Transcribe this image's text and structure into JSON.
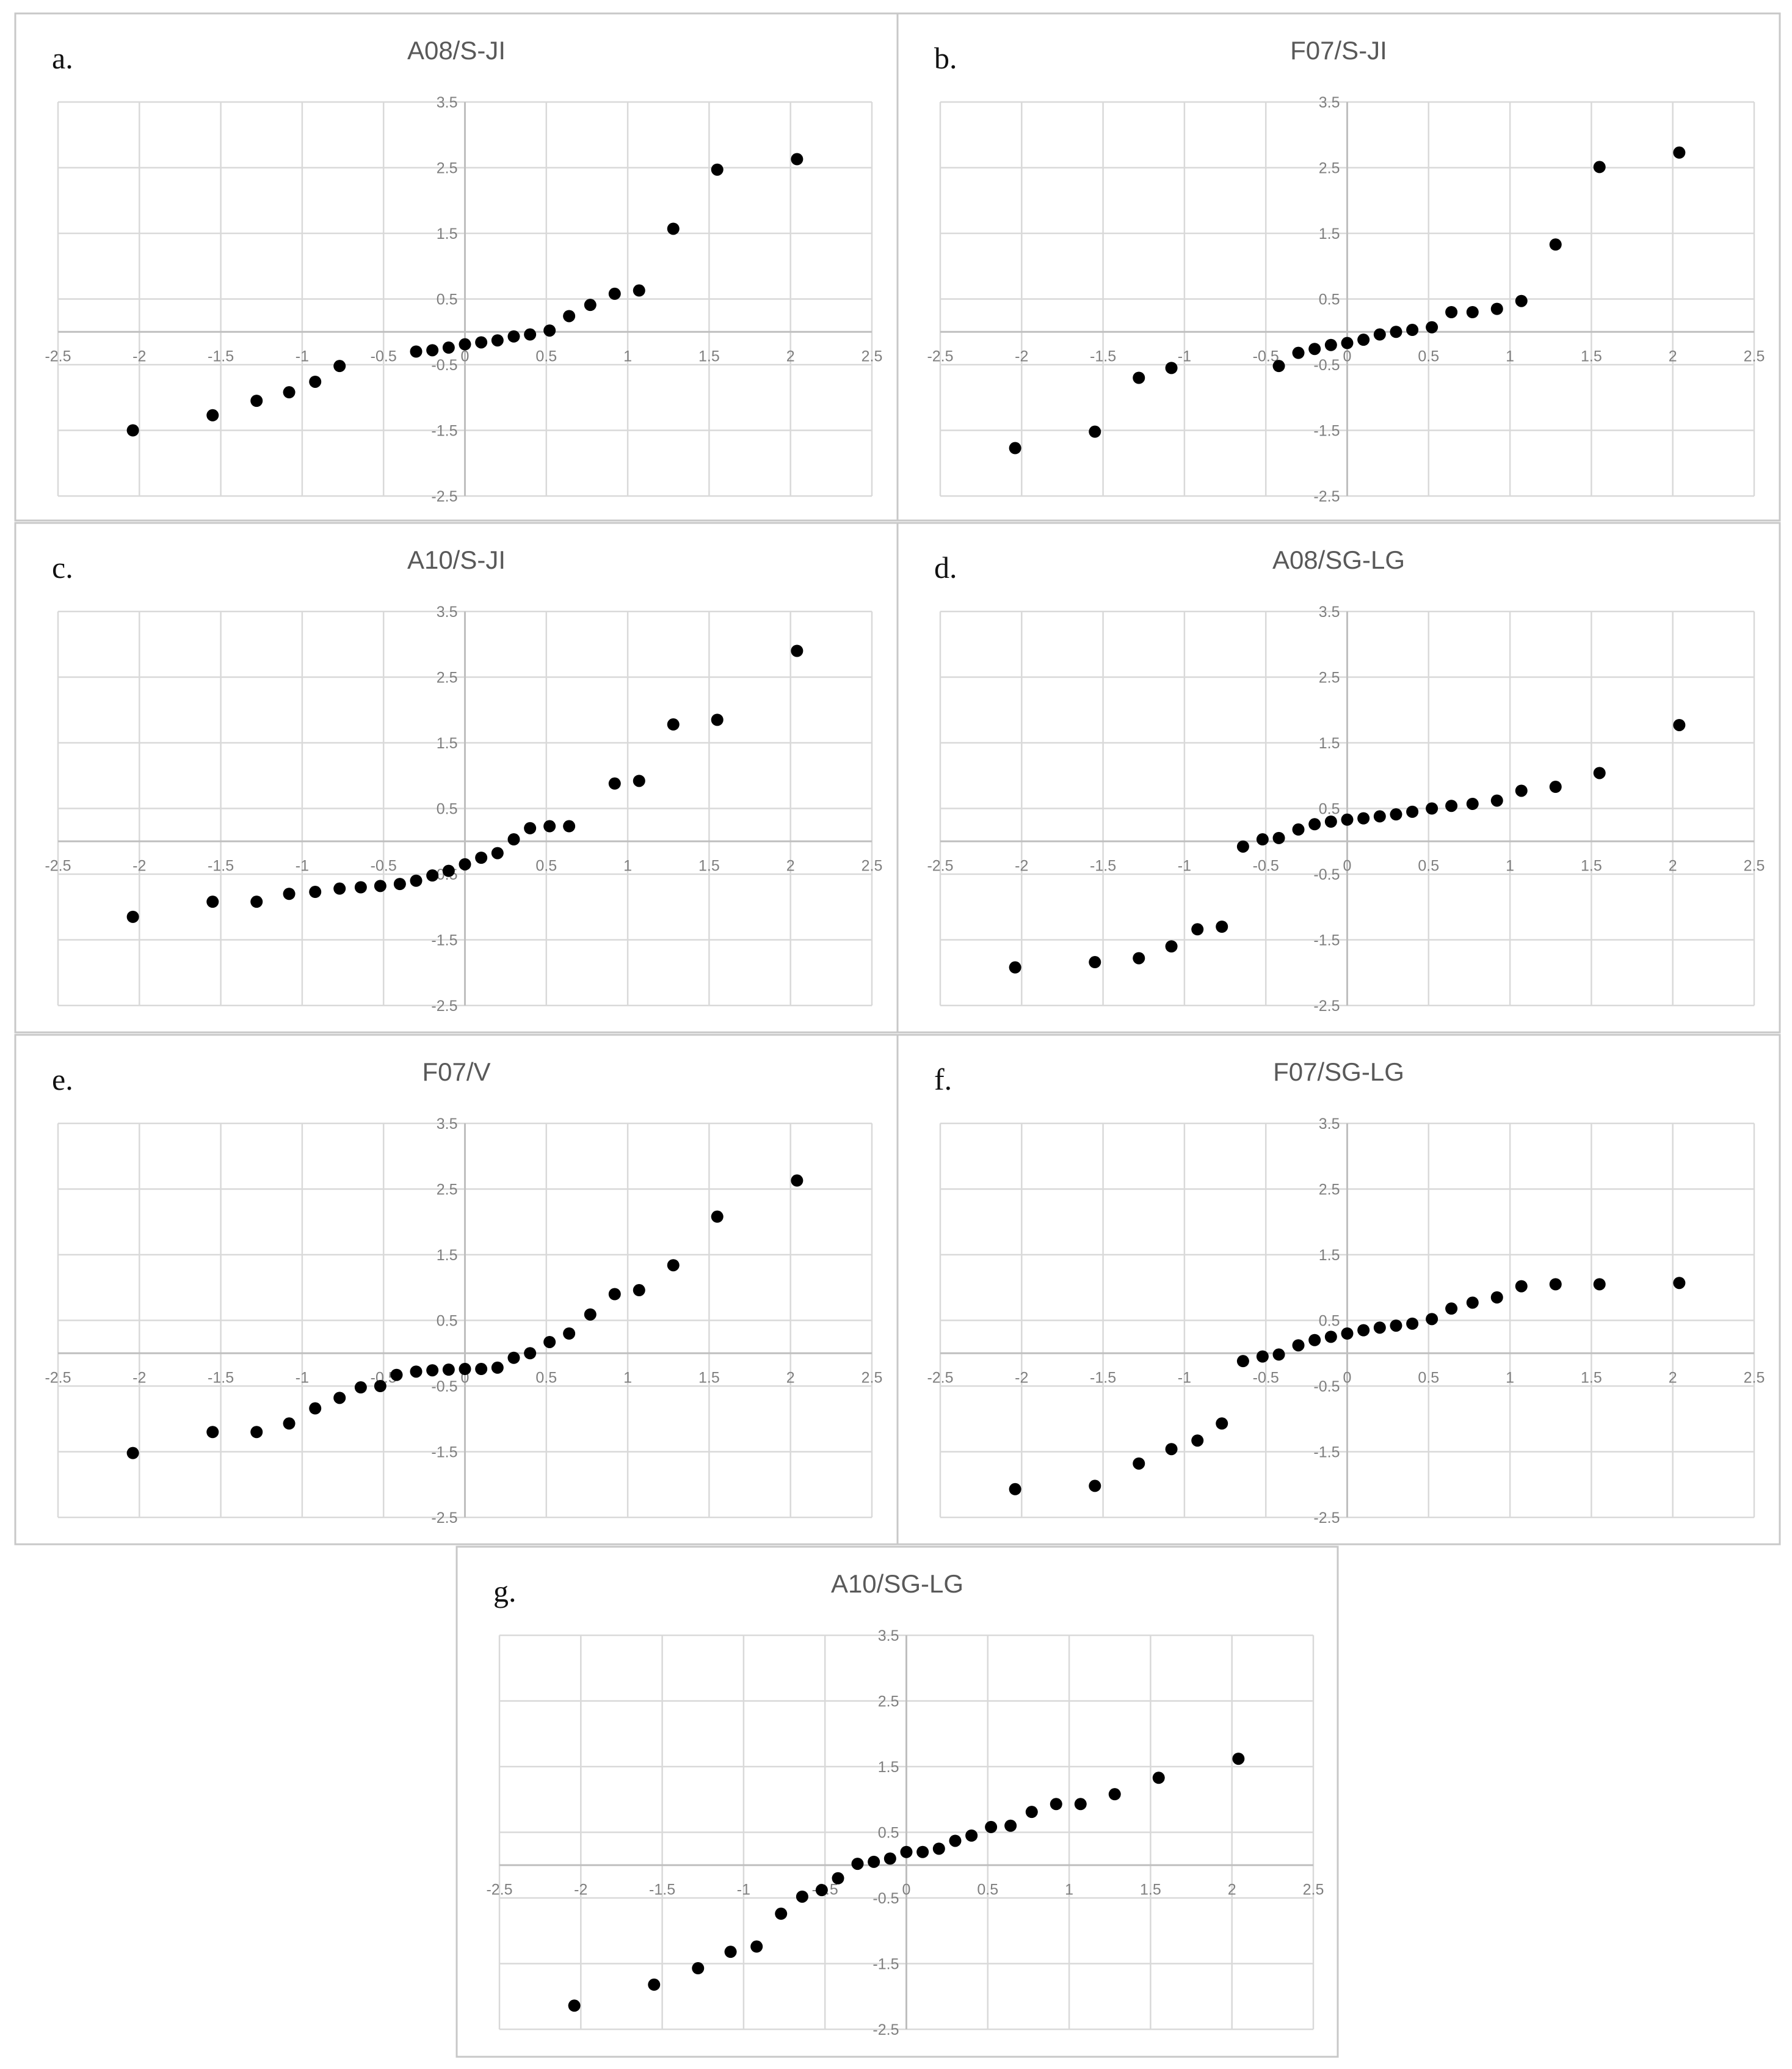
{
  "figure": {
    "point_color": "#000000",
    "grid_color": "#d9d9d9",
    "axis_color": "#bfbfbf",
    "title_color": "#595959",
    "tick_color": "#7f7f7f"
  },
  "chart_data": [
    {
      "panel_label": "a.",
      "type": "scatter",
      "title": "A08/S-JI",
      "xlim": [
        -2.5,
        2.5
      ],
      "ylim": [
        -2.5,
        3.5
      ],
      "x_ticks": [
        "-2.5",
        "-2",
        "-1.5",
        "-1",
        "-0.5",
        "0",
        "0.5",
        "1",
        "1.5",
        "2",
        "2.5"
      ],
      "y_ticks": [
        "3.5",
        "2.5",
        "1.5",
        "0.5",
        "-0.5",
        "-1.5",
        "-2.5"
      ],
      "grid": true,
      "points": [
        [
          -2.04,
          -1.5
        ],
        [
          -1.55,
          -1.27
        ],
        [
          -1.28,
          -1.05
        ],
        [
          -1.08,
          -0.92
        ],
        [
          -0.92,
          -0.76
        ],
        [
          -0.77,
          -0.52
        ],
        [
          -0.3,
          -0.3
        ],
        [
          -0.2,
          -0.28
        ],
        [
          -0.1,
          -0.24
        ],
        [
          0.0,
          -0.19
        ],
        [
          0.1,
          -0.16
        ],
        [
          0.2,
          -0.13
        ],
        [
          0.3,
          -0.07
        ],
        [
          0.4,
          -0.04
        ],
        [
          0.52,
          0.02
        ],
        [
          0.64,
          0.24
        ],
        [
          0.77,
          0.41
        ],
        [
          0.92,
          0.58
        ],
        [
          1.07,
          0.63
        ],
        [
          1.28,
          1.57
        ],
        [
          1.55,
          2.47
        ],
        [
          2.04,
          2.63
        ]
      ]
    },
    {
      "panel_label": "b.",
      "type": "scatter",
      "title": "F07/S-JI",
      "xlim": [
        -2.5,
        2.5
      ],
      "ylim": [
        -2.5,
        3.5
      ],
      "x_ticks": [
        "-2.5",
        "-2",
        "-1.5",
        "-1",
        "-0.5",
        "0",
        "0.5",
        "1",
        "1.5",
        "2",
        "2.5"
      ],
      "y_ticks": [
        "3.5",
        "2.5",
        "1.5",
        "0.5",
        "-0.5",
        "-1.5",
        "-2.5"
      ],
      "grid": true,
      "points": [
        [
          -2.04,
          -1.77
        ],
        [
          -1.55,
          -1.52
        ],
        [
          -1.28,
          -0.7
        ],
        [
          -1.08,
          -0.55
        ],
        [
          -0.42,
          -0.52
        ],
        [
          -0.3,
          -0.32
        ],
        [
          -0.2,
          -0.26
        ],
        [
          -0.1,
          -0.2
        ],
        [
          0.0,
          -0.17
        ],
        [
          0.1,
          -0.12
        ],
        [
          0.2,
          -0.04
        ],
        [
          0.3,
          0.0
        ],
        [
          0.4,
          0.03
        ],
        [
          0.52,
          0.07
        ],
        [
          0.64,
          0.3
        ],
        [
          0.77,
          0.3
        ],
        [
          0.92,
          0.35
        ],
        [
          1.07,
          0.47
        ],
        [
          1.28,
          1.33
        ],
        [
          1.55,
          2.51
        ],
        [
          2.04,
          2.73
        ]
      ]
    },
    {
      "panel_label": "c.",
      "type": "scatter",
      "title": "A10/S-JI",
      "xlim": [
        -2.5,
        2.5
      ],
      "ylim": [
        -2.5,
        3.5
      ],
      "x_ticks": [
        "-2.5",
        "-2",
        "-1.5",
        "-1",
        "-0.5",
        "0",
        "0.5",
        "1",
        "1.5",
        "2",
        "2.5"
      ],
      "y_ticks": [
        "3.5",
        "2.5",
        "1.5",
        "0.5",
        "-0.5",
        "-1.5",
        "-2.5"
      ],
      "grid": true,
      "points": [
        [
          -2.04,
          -1.15
        ],
        [
          -1.55,
          -0.92
        ],
        [
          -1.28,
          -0.92
        ],
        [
          -1.08,
          -0.8
        ],
        [
          -0.92,
          -0.77
        ],
        [
          -0.77,
          -0.72
        ],
        [
          -0.64,
          -0.7
        ],
        [
          -0.52,
          -0.68
        ],
        [
          -0.4,
          -0.65
        ],
        [
          -0.3,
          -0.6
        ],
        [
          -0.2,
          -0.52
        ],
        [
          -0.1,
          -0.45
        ],
        [
          0.0,
          -0.35
        ],
        [
          0.1,
          -0.25
        ],
        [
          0.2,
          -0.18
        ],
        [
          0.3,
          0.03
        ],
        [
          0.4,
          0.2
        ],
        [
          0.52,
          0.23
        ],
        [
          0.64,
          0.23
        ],
        [
          0.92,
          0.88
        ],
        [
          1.07,
          0.92
        ],
        [
          1.28,
          1.78
        ],
        [
          1.55,
          1.85
        ],
        [
          2.04,
          2.9
        ]
      ]
    },
    {
      "panel_label": "d.",
      "type": "scatter",
      "title": "A08/SG-LG",
      "xlim": [
        -2.5,
        2.5
      ],
      "ylim": [
        -2.5,
        3.5
      ],
      "x_ticks": [
        "-2.5",
        "-2",
        "-1.5",
        "-1",
        "-0.5",
        "0",
        "0.5",
        "1",
        "1.5",
        "2",
        "2.5"
      ],
      "y_ticks": [
        "3.5",
        "2.5",
        "1.5",
        "0.5",
        "-0.5",
        "-1.5",
        "-2.5"
      ],
      "grid": true,
      "points": [
        [
          -2.04,
          -1.92
        ],
        [
          -1.55,
          -1.84
        ],
        [
          -1.28,
          -1.78
        ],
        [
          -1.08,
          -1.6
        ],
        [
          -0.92,
          -1.34
        ],
        [
          -0.77,
          -1.3
        ],
        [
          -0.64,
          -0.08
        ],
        [
          -0.52,
          0.03
        ],
        [
          -0.42,
          0.05
        ],
        [
          -0.3,
          0.18
        ],
        [
          -0.2,
          0.26
        ],
        [
          -0.1,
          0.3
        ],
        [
          0.0,
          0.33
        ],
        [
          0.1,
          0.35
        ],
        [
          0.2,
          0.38
        ],
        [
          0.3,
          0.41
        ],
        [
          0.4,
          0.45
        ],
        [
          0.52,
          0.5
        ],
        [
          0.64,
          0.54
        ],
        [
          0.77,
          0.57
        ],
        [
          0.92,
          0.62
        ],
        [
          1.07,
          0.77
        ],
        [
          1.28,
          0.83
        ],
        [
          1.55,
          1.04
        ],
        [
          2.04,
          1.77
        ]
      ]
    },
    {
      "panel_label": "e.",
      "type": "scatter",
      "title": "F07/V",
      "xlim": [
        -2.5,
        2.5
      ],
      "ylim": [
        -2.5,
        3.5
      ],
      "x_ticks": [
        "-2.5",
        "-2",
        "-1.5",
        "-1",
        "-0.5",
        "0",
        "0.5",
        "1",
        "1.5",
        "2",
        "2.5"
      ],
      "y_ticks": [
        "3.5",
        "2.5",
        "1.5",
        "0.5",
        "-0.5",
        "-1.5",
        "-2.5"
      ],
      "grid": true,
      "points": [
        [
          -2.04,
          -1.52
        ],
        [
          -1.55,
          -1.2
        ],
        [
          -1.28,
          -1.2
        ],
        [
          -1.08,
          -1.07
        ],
        [
          -0.92,
          -0.84
        ],
        [
          -0.77,
          -0.68
        ],
        [
          -0.64,
          -0.52
        ],
        [
          -0.52,
          -0.5
        ],
        [
          -0.42,
          -0.33
        ],
        [
          -0.3,
          -0.28
        ],
        [
          -0.2,
          -0.26
        ],
        [
          -0.1,
          -0.25
        ],
        [
          0.0,
          -0.24
        ],
        [
          0.1,
          -0.24
        ],
        [
          0.2,
          -0.22
        ],
        [
          0.3,
          -0.07
        ],
        [
          0.4,
          0.0
        ],
        [
          0.52,
          0.17
        ],
        [
          0.64,
          0.3
        ],
        [
          0.77,
          0.59
        ],
        [
          0.92,
          0.9
        ],
        [
          1.07,
          0.96
        ],
        [
          1.28,
          1.34
        ],
        [
          1.55,
          2.08
        ],
        [
          2.04,
          2.63
        ]
      ]
    },
    {
      "panel_label": "f.",
      "type": "scatter",
      "title": "F07/SG-LG",
      "xlim": [
        -2.5,
        2.5
      ],
      "ylim": [
        -2.5,
        3.5
      ],
      "x_ticks": [
        "-2.5",
        "-2",
        "-1.5",
        "-1",
        "-0.5",
        "0",
        "0.5",
        "1",
        "1.5",
        "2",
        "2.5"
      ],
      "y_ticks": [
        "3.5",
        "2.5",
        "1.5",
        "0.5",
        "-0.5",
        "-1.5",
        "-2.5"
      ],
      "grid": true,
      "points": [
        [
          -2.04,
          -2.07
        ],
        [
          -1.55,
          -2.02
        ],
        [
          -1.28,
          -1.68
        ],
        [
          -1.08,
          -1.46
        ],
        [
          -0.92,
          -1.33
        ],
        [
          -0.77,
          -1.07
        ],
        [
          -0.64,
          -0.12
        ],
        [
          -0.52,
          -0.05
        ],
        [
          -0.42,
          -0.02
        ],
        [
          -0.3,
          0.12
        ],
        [
          -0.2,
          0.2
        ],
        [
          -0.1,
          0.25
        ],
        [
          0.0,
          0.3
        ],
        [
          0.1,
          0.35
        ],
        [
          0.2,
          0.39
        ],
        [
          0.3,
          0.42
        ],
        [
          0.4,
          0.45
        ],
        [
          0.52,
          0.52
        ],
        [
          0.64,
          0.68
        ],
        [
          0.77,
          0.77
        ],
        [
          0.92,
          0.85
        ],
        [
          1.07,
          1.02
        ],
        [
          1.28,
          1.05
        ],
        [
          1.55,
          1.05
        ],
        [
          2.04,
          1.07
        ]
      ]
    },
    {
      "panel_label": "g.",
      "type": "scatter",
      "title": "A10/SG-LG",
      "xlim": [
        -2.5,
        2.5
      ],
      "ylim": [
        -2.5,
        3.5
      ],
      "x_ticks": [
        "-2.5",
        "-2",
        "-1.5",
        "-1",
        "-0.5",
        "0",
        "0.5",
        "1",
        "1.5",
        "2",
        "2.5"
      ],
      "y_ticks": [
        "3.5",
        "2.5",
        "1.5",
        "0.5",
        "-0.5",
        "-1.5",
        "-2.5"
      ],
      "grid": true,
      "points": [
        [
          -2.04,
          -2.14
        ],
        [
          -1.55,
          -1.82
        ],
        [
          -1.28,
          -1.57
        ],
        [
          -1.08,
          -1.32
        ],
        [
          -0.92,
          -1.24
        ],
        [
          -0.77,
          -0.74
        ],
        [
          -0.64,
          -0.48
        ],
        [
          -0.52,
          -0.38
        ],
        [
          -0.42,
          -0.2
        ],
        [
          -0.3,
          0.02
        ],
        [
          -0.2,
          0.05
        ],
        [
          -0.1,
          0.1
        ],
        [
          0.0,
          0.2
        ],
        [
          0.1,
          0.2
        ],
        [
          0.2,
          0.25
        ],
        [
          0.3,
          0.37
        ],
        [
          0.4,
          0.45
        ],
        [
          0.52,
          0.58
        ],
        [
          0.64,
          0.6
        ],
        [
          0.77,
          0.81
        ],
        [
          0.92,
          0.93
        ],
        [
          1.07,
          0.93
        ],
        [
          1.28,
          1.08
        ],
        [
          1.55,
          1.33
        ],
        [
          2.04,
          1.62
        ]
      ]
    }
  ]
}
